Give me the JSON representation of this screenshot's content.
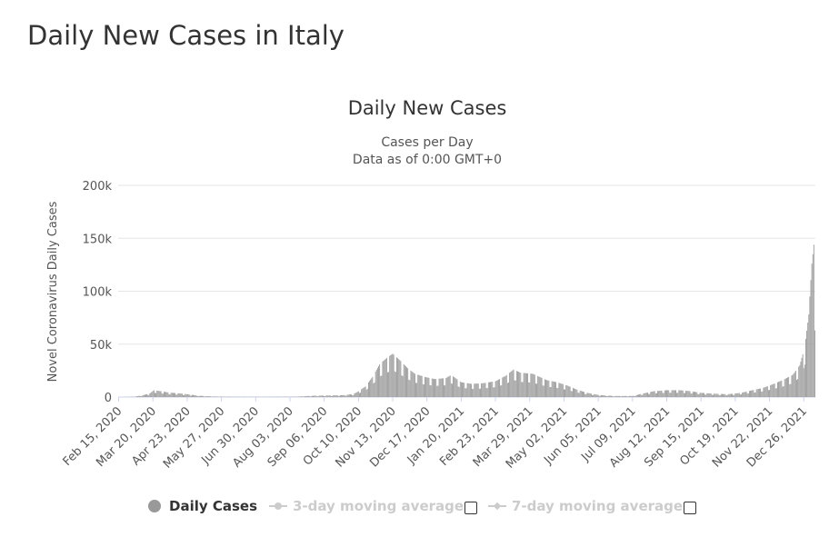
{
  "page": {
    "title": "Daily New Cases in Italy"
  },
  "chart_data": {
    "type": "bar",
    "title": "Daily New Cases",
    "subtitle_line1": "Cases per Day",
    "subtitle_line2": "Data as of 0:00 GMT+0",
    "ylabel": "Novel Coronavirus Daily Cases",
    "ylim": [
      0,
      200000
    ],
    "y_ticks": [
      {
        "value": 0,
        "label": "0"
      },
      {
        "value": 50000,
        "label": "50k"
      },
      {
        "value": 100000,
        "label": "100k"
      },
      {
        "value": 150000,
        "label": "150k"
      },
      {
        "value": 200000,
        "label": "200k"
      }
    ],
    "x_tick_labels": [
      "Feb 15, 2020",
      "Mar 20, 2020",
      "Apr 23, 2020",
      "May 27, 2020",
      "Jun 30, 2020",
      "Aug 03, 2020",
      "Sep 06, 2020",
      "Oct 10, 2020",
      "Nov 13, 2020",
      "Dec 17, 2020",
      "Jan 20, 2021",
      "Feb 23, 2021",
      "Mar 29, 2021",
      "May 02, 2021",
      "Jun 05, 2021",
      "Jul 09, 2021",
      "Aug 12, 2021",
      "Sep 15, 2021",
      "Oct 19, 2021",
      "Nov 22, 2021",
      "Dec 26, 2021"
    ],
    "x_tick_interval_days": 34,
    "series": [
      {
        "name": "Daily Cases",
        "color": "#999999",
        "start_date": "Feb 15, 2020",
        "end_date": "Jan 06, 2022",
        "points": [
          [
            "Feb 15, 2020",
            0
          ],
          [
            "Feb 24, 2020",
            100
          ],
          [
            "Mar 03, 2020",
            500
          ],
          [
            "Mar 10, 2020",
            1800
          ],
          [
            "Mar 17, 2020",
            3500
          ],
          [
            "Mar 21, 2020",
            6500
          ],
          [
            "Mar 28, 2020",
            5500
          ],
          [
            "Apr 05, 2020",
            4300
          ],
          [
            "Apr 15, 2020",
            3500
          ],
          [
            "Apr 25, 2020",
            2500
          ],
          [
            "May 05, 2020",
            1200
          ],
          [
            "May 20, 2020",
            500
          ],
          [
            "Jun 10, 2020",
            250
          ],
          [
            "Jul 10, 2020",
            200
          ],
          [
            "Aug 10, 2020",
            400
          ],
          [
            "Aug 25, 2020",
            1200
          ],
          [
            "Sep 10, 2020",
            1500
          ],
          [
            "Sep 25, 2020",
            1800
          ],
          [
            "Oct 05, 2020",
            2800
          ],
          [
            "Oct 10, 2020",
            5500
          ],
          [
            "Oct 17, 2020",
            10000
          ],
          [
            "Oct 24, 2020",
            19000
          ],
          [
            "Oct 31, 2020",
            31000
          ],
          [
            "Nov 07, 2020",
            37000
          ],
          [
            "Nov 13, 2020",
            40900
          ],
          [
            "Nov 20, 2020",
            35000
          ],
          [
            "Nov 27, 2020",
            28000
          ],
          [
            "Dec 05, 2020",
            22000
          ],
          [
            "Dec 15, 2020",
            19000
          ],
          [
            "Dec 25, 2020",
            17000
          ],
          [
            "Jan 05, 2021",
            18000
          ],
          [
            "Jan 10, 2021",
            21000
          ],
          [
            "Jan 20, 2021",
            14000
          ],
          [
            "Jan 30, 2021",
            12500
          ],
          [
            "Feb 10, 2021",
            13000
          ],
          [
            "Feb 23, 2021",
            15000
          ],
          [
            "Mar 05, 2021",
            20000
          ],
          [
            "Mar 13, 2021",
            26000
          ],
          [
            "Mar 20, 2021",
            23000
          ],
          [
            "Apr 01, 2021",
            22000
          ],
          [
            "Apr 15, 2021",
            16000
          ],
          [
            "Apr 25, 2021",
            14000
          ],
          [
            "May 05, 2021",
            11000
          ],
          [
            "May 15, 2021",
            7000
          ],
          [
            "May 25, 2021",
            4000
          ],
          [
            "Jun 05, 2021",
            2000
          ],
          [
            "Jun 20, 2021",
            1000
          ],
          [
            "Jul 09, 2021",
            1000
          ],
          [
            "Jul 20, 2021",
            3500
          ],
          [
            "Jul 30, 2021",
            5500
          ],
          [
            "Aug 12, 2021",
            6500
          ],
          [
            "Aug 25, 2021",
            6500
          ],
          [
            "Sep 05, 2021",
            5500
          ],
          [
            "Sep 15, 2021",
            4000
          ],
          [
            "Oct 01, 2021",
            3000
          ],
          [
            "Oct 12, 2021",
            2700
          ],
          [
            "Oct 25, 2021",
            4000
          ],
          [
            "Nov 05, 2021",
            6500
          ],
          [
            "Nov 15, 2021",
            8500
          ],
          [
            "Nov 25, 2021",
            12000
          ],
          [
            "Dec 05, 2021",
            16000
          ],
          [
            "Dec 15, 2021",
            21000
          ],
          [
            "Dec 22, 2021",
            30000
          ],
          [
            "Dec 26, 2021",
            44000
          ],
          [
            "Dec 28, 2021",
            55000
          ],
          [
            "Dec 31, 2021",
            78000
          ],
          [
            "Jan 01, 2022",
            95000
          ],
          [
            "Jan 03, 2022",
            126000
          ],
          [
            "Jan 05, 2022",
            144000
          ],
          [
            "Jan 06, 2022",
            63000
          ]
        ]
      }
    ],
    "legend": [
      {
        "label": "Daily Cases",
        "active": true
      },
      {
        "label": "3-day moving average",
        "active": false
      },
      {
        "label": "7-day moving average",
        "active": false
      }
    ]
  }
}
